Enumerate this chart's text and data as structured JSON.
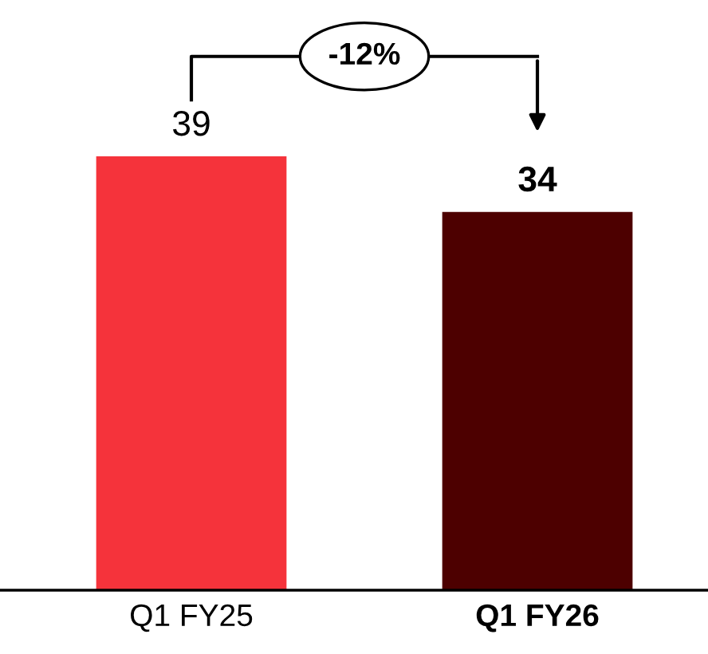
{
  "chart_data": {
    "type": "bar",
    "categories": [
      "Q1 FY25",
      "Q1 FY26"
    ],
    "values": [
      39,
      34
    ],
    "colors": [
      "#f5333b",
      "#4d0000"
    ],
    "data_labels": true,
    "annotations": [
      "-12%"
    ],
    "grid": false
  }
}
